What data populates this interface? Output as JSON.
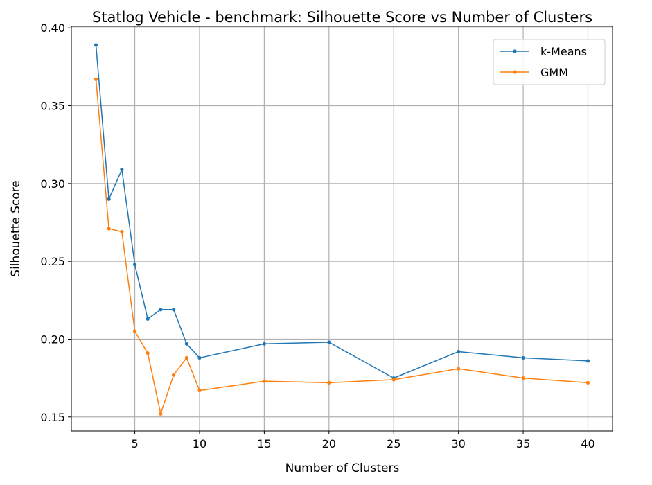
{
  "chart_data": {
    "type": "line",
    "title": "Statlog Vehicle - benchmark: Silhouette Score vs Number of Clusters",
    "xlabel": "Number of Clusters",
    "ylabel": "Silhouette Score",
    "x": [
      2,
      3,
      4,
      5,
      6,
      7,
      8,
      9,
      10,
      15,
      20,
      25,
      30,
      35,
      40
    ],
    "xticks": [
      5,
      10,
      15,
      20,
      25,
      30,
      35,
      40
    ],
    "yticks": [
      "0.15",
      "0.20",
      "0.25",
      "0.30",
      "0.35",
      "0.40"
    ],
    "xlim": [
      0.1,
      41.9
    ],
    "ylim": [
      0.141,
      0.401
    ],
    "grid": true,
    "legend_position": "top-right",
    "series": [
      {
        "name": "k-Means",
        "color": "#1f77b4",
        "values": [
          0.389,
          0.29,
          0.309,
          0.248,
          0.213,
          0.219,
          0.219,
          0.197,
          0.188,
          0.197,
          0.198,
          0.175,
          0.192,
          0.188,
          0.186
        ]
      },
      {
        "name": "GMM",
        "color": "#ff7f0e",
        "values": [
          0.367,
          0.271,
          0.269,
          0.205,
          0.191,
          0.152,
          0.177,
          0.188,
          0.167,
          0.173,
          0.172,
          0.174,
          0.181,
          0.175,
          0.172
        ]
      }
    ]
  }
}
